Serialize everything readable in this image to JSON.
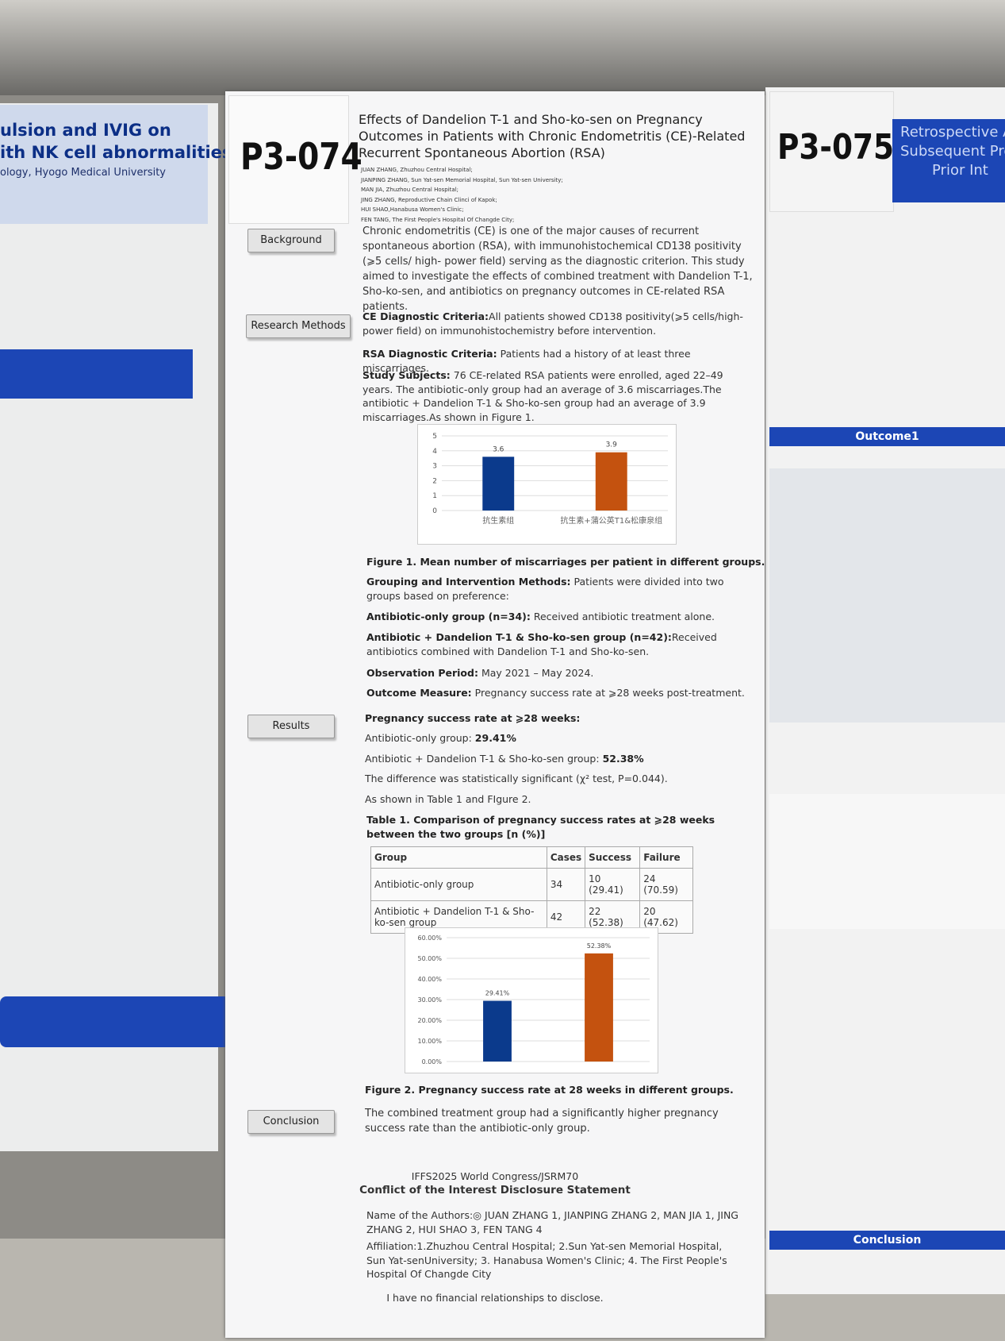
{
  "poster": {
    "id": "P3-074",
    "title": "Effects of Dandelion T-1 and Sho-ko-sen on Pregnancy Outcomes in Patients with Chronic Endometritis (CE)-Related Recurrent Spontaneous Abortion (RSA)",
    "authors": [
      "JUAN ZHANG, Zhuzhou Central Hospital;",
      "JIANPING ZHANG, Sun Yat-sen Memorial Hospital, Sun Yat-sen University;",
      "MAN JIA, Zhuzhou Central Hospital;",
      "JING ZHANG, Reproductive Chain Clinci of Kapok;",
      "HUI SHAO,Hanabusa Women's Clinic;",
      "FEN TANG, The First People's Hospital Of Changde City;"
    ],
    "background": {
      "heading": "Background",
      "text": "Chronic endometritis (CE) is one of the major causes of recurrent spontaneous abortion (RSA), with immunohistochemical CD138 positivity (⩾5 cells/ high- power field) serving as the diagnostic criterion. This study aimed to investigate the effects of combined treatment with Dandelion T-1, Sho-ko-sen, and antibiotics on pregnancy outcomes in CE-related RSA patients."
    },
    "methods": {
      "heading": "Research Methods",
      "items": [
        {
          "label": "CE Diagnostic Criteria:",
          "text": "All patients showed CD138 positivity(⩾5 cells/high-power field) on immunohistochemistry before intervention."
        },
        {
          "label": "RSA Diagnostic Criteria:",
          "text": "Patients had a history of at least three miscarriages."
        },
        {
          "label": "Study Subjects:",
          "text": "76 CE-related RSA patients were enrolled, aged 22–49 years. The antibiotic-only group had an average of 3.6 miscarriages.The antibiotic + Dandelion T-1 & Sho-ko-sen group had an average of 3.9 miscarriages.As shown in Figure 1."
        }
      ]
    },
    "groups": [
      {
        "label": "Grouping and Intervention Methods:",
        "text": "Patients were divided into two groups based on preference:"
      },
      {
        "label": "Antibiotic-only group (n=34):",
        "text": "Received antibiotic treatment alone."
      },
      {
        "label": "Antibiotic + Dandelion T-1 & Sho-ko-sen group (n=42):",
        "text": "Received antibiotics combined with Dandelion T-1 and Sho-ko-sen."
      },
      {
        "label": "Observation Period:",
        "text": "May 2021 – May 2024."
      },
      {
        "label": "Outcome Measure:",
        "text": "Pregnancy success rate at ⩾28 weeks post-treatment."
      }
    ],
    "results": {
      "heading": "Results",
      "lead": "Pregnancy success rate at ⩾28 weeks:",
      "lines": [
        {
          "label": "Antibiotic-only group: ",
          "value": "29.41%"
        },
        {
          "label": "Antibiotic + Dandelion T-1 & Sho-ko-sen group: ",
          "value": "52.38%"
        }
      ],
      "notes": [
        "The difference was statistically significant (χ² test, P=0.044).",
        "As shown in Table 1 and FIgure 2."
      ]
    },
    "table": {
      "caption": "Table 1. Comparison of pregnancy success rates at ⩾28 weeks between the two groups [n (%)]",
      "header": [
        "Group",
        "Cases",
        "Success",
        "Failure"
      ],
      "rows": [
        [
          "Antibiotic-only group",
          34,
          "10 (29.41)",
          "24 (70.59)"
        ],
        [
          "Antibiotic + Dandelion T-1 & Sho-ko-sen group",
          42,
          "22 (52.38)",
          "20 (47.62)"
        ]
      ]
    },
    "conclusion": {
      "heading": "Conclusion",
      "text": "The combined treatment group had a significantly higher pregnancy success rate than the antibiotic-only group."
    },
    "disclosure": {
      "congress": "IFFS2025 World Congress/JSRM70",
      "title": "Conflict of the Interest Disclosure Statement",
      "authors": "Name of the Authors:◎ JUAN ZHANG 1, JIANPING ZHANG 2, MAN JIA 1, JING ZHANG 2, HUI SHAO 3, FEN TANG 4",
      "affiliation": "Affiliation:1.Zhuzhou Central Hospital; 2.Sun Yat-sen Memorial Hospital, Sun Yat-senUniversity; 3. Hanabusa Women's Clinic; 4. The First People's Hospital Of Changde City",
      "statement": "I have no financial relationships to disclose."
    }
  },
  "sides": {
    "left": [
      "ulsion and IVIG on",
      "ith NK cell abnormalities",
      "ology, Hyogo Medical University"
    ],
    "right": {
      "id": "P3-075",
      "title": [
        "Retrospective A",
        "Subsequent Preg",
        "Prior Int"
      ],
      "headings": [
        "Outcome1",
        "Conclusion"
      ]
    }
  },
  "chart_data": [
    {
      "type": "bar",
      "title": "Figure 1. Mean number of miscarriages per patient in different groups.",
      "categories": [
        "抗生素组",
        "抗生素+蒲公英T1&松康泉组"
      ],
      "values": [
        3.6,
        3.9
      ],
      "colors": [
        "#0b3a8c",
        "#c4520f"
      ],
      "ylim": [
        0,
        5
      ],
      "yticks": [
        0,
        1,
        2,
        3,
        4,
        5
      ],
      "grid": true
    },
    {
      "type": "bar",
      "title": "Figure 2. Pregnancy success rate at 28 weeks in different groups.",
      "categories": [
        null,
        null
      ],
      "values": [
        29.41,
        52.38
      ],
      "value_labels": [
        "29.41%",
        "52.38%"
      ],
      "colors": [
        "#0b3a8c",
        "#c4520f"
      ],
      "ylim": [
        0,
        60
      ],
      "yticks": [
        {
          "value": 0,
          "label": "0.00%"
        },
        {
          "value": 10,
          "label": "10.00%"
        },
        {
          "value": 20,
          "label": "20.00%"
        },
        {
          "value": 30,
          "label": "30.00%"
        },
        {
          "value": 40,
          "label": "40.00%"
        },
        {
          "value": 50,
          "label": "50.00%"
        },
        {
          "value": 60,
          "label": "60.00%"
        }
      ],
      "grid": true
    }
  ]
}
